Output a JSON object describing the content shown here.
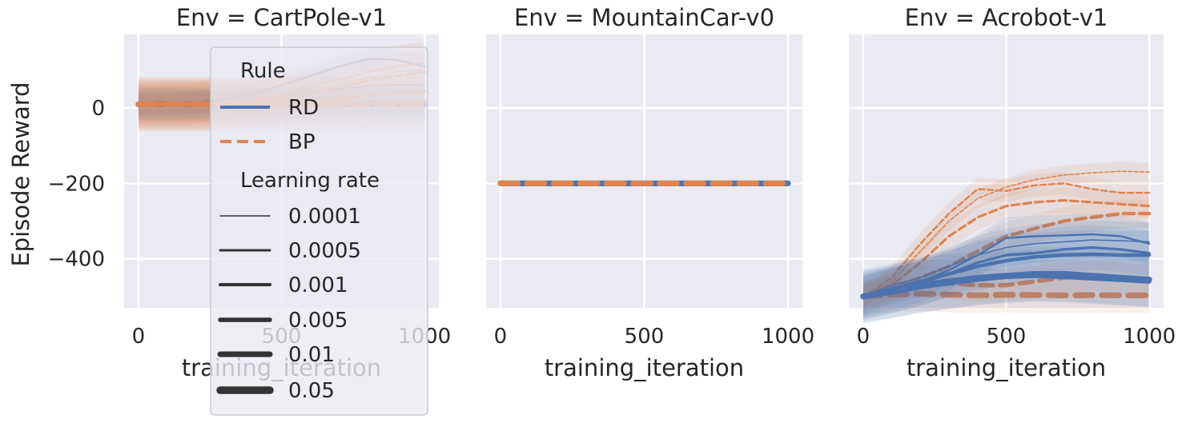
{
  "chart_data": {
    "type": "line",
    "ylabel": "Episode Reward",
    "ylim": [
      -530,
      195
    ],
    "yticks": [
      "0",
      "−200",
      "−400"
    ],
    "ytick_values": [
      0,
      -200,
      -400
    ],
    "background": "#eaeaf2",
    "grid": true,
    "colors": {
      "RD": "#4c72b0",
      "BP": "#dd8452",
      "legend_line": "#333333"
    },
    "legend": {
      "placement": "over-left-panel",
      "title_rule": "Rule",
      "rules": [
        "RD",
        "BP"
      ],
      "title_lr": "Learning rate",
      "learning_rates": [
        "0.0001",
        "0.0005",
        "0.001",
        "0.005",
        "0.01",
        "0.05"
      ]
    },
    "panels": [
      {
        "title": "Env = CartPole-v1",
        "xlabel": "training_iteration",
        "xlim": [
          -50,
          1050
        ],
        "xticks": [
          "0",
          "500",
          "1000"
        ],
        "xtick_values": [
          0,
          500,
          1000
        ],
        "series": [
          {
            "rule": "RD",
            "lr": "0.0001",
            "x": [
              0,
              100,
              200,
              300,
              400,
              500,
              600,
              700,
              800,
              900,
              1000
            ],
            "y": [
              10,
              10,
              12,
              16,
              22,
              30,
              40,
              50,
              58,
              62,
              60
            ]
          },
          {
            "rule": "RD",
            "lr": "0.0005",
            "x": [
              0,
              100,
              200,
              300,
              400,
              500,
              600,
              700,
              800,
              900,
              1000
            ],
            "y": [
              10,
              10,
              14,
              22,
              38,
              60,
              85,
              110,
              130,
              128,
              110
            ]
          },
          {
            "rule": "RD",
            "lr": "0.001",
            "x": [
              0,
              100,
              200,
              300,
              400,
              500,
              600,
              700,
              800,
              900,
              1000
            ],
            "y": [
              10,
              10,
              11,
              12,
              13,
              14,
              15,
              15,
              16,
              16,
              16
            ]
          },
          {
            "rule": "RD",
            "lr": "0.005",
            "x": [
              0,
              100,
              200,
              300,
              400,
              500,
              600,
              700,
              800,
              900,
              1000
            ],
            "y": [
              10,
              10,
              10,
              11,
              11,
              12,
              12,
              13,
              14,
              14,
              14
            ]
          },
          {
            "rule": "RD",
            "lr": "0.01",
            "x": [
              0,
              100,
              200,
              300,
              400,
              500,
              600,
              700,
              800,
              900,
              1000
            ],
            "y": [
              10,
              10,
              10,
              10,
              10,
              11,
              11,
              11,
              11,
              11,
              11
            ]
          },
          {
            "rule": "RD",
            "lr": "0.05",
            "x": [
              0,
              100,
              200,
              300,
              400,
              500,
              600,
              700,
              800,
              900,
              1000
            ],
            "y": [
              10,
              10,
              10,
              10,
              10,
              10,
              10,
              10,
              10,
              10,
              10
            ]
          },
          {
            "rule": "BP",
            "lr": "0.0001",
            "x": [
              0,
              100,
              200,
              300,
              400,
              500,
              600,
              700,
              800,
              900,
              1000
            ],
            "y": [
              10,
              10,
              11,
              14,
              20,
              30,
              45,
              62,
              80,
              95,
              100
            ]
          },
          {
            "rule": "BP",
            "lr": "0.0005",
            "x": [
              0,
              100,
              200,
              300,
              400,
              500,
              600,
              700,
              800,
              900,
              1000
            ],
            "y": [
              10,
              10,
              12,
              16,
              25,
              38,
              55,
              75,
              95,
              110,
              120
            ]
          },
          {
            "rule": "BP",
            "lr": "0.001",
            "x": [
              0,
              100,
              200,
              300,
              400,
              500,
              600,
              700,
              800,
              900,
              1000
            ],
            "y": [
              10,
              10,
              11,
              13,
              18,
              26,
              38,
              55,
              72,
              85,
              95
            ]
          },
          {
            "rule": "BP",
            "lr": "0.005",
            "x": [
              0,
              100,
              200,
              300,
              400,
              500,
              600,
              700,
              800,
              900,
              1000
            ],
            "y": [
              10,
              10,
              10,
              11,
              13,
              16,
              20,
              26,
              33,
              40,
              45
            ]
          },
          {
            "rule": "BP",
            "lr": "0.01",
            "x": [
              0,
              100,
              200,
              300,
              400,
              500,
              600,
              700,
              800,
              900,
              1000
            ],
            "y": [
              10,
              10,
              10,
              10,
              11,
              12,
              13,
              14,
              15,
              16,
              16
            ]
          },
          {
            "rule": "BP",
            "lr": "0.05",
            "x": [
              0,
              100,
              200,
              300,
              400,
              500,
              600,
              700,
              800,
              900,
              1000
            ],
            "y": [
              10,
              10,
              10,
              10,
              10,
              10,
              10,
              10,
              10,
              10,
              10
            ]
          }
        ]
      },
      {
        "title": "Env = MountainCar-v0",
        "xlabel": "training_iteration",
        "xlim": [
          -50,
          1050
        ],
        "xticks": [
          "0",
          "500",
          "1000"
        ],
        "xtick_values": [
          0,
          500,
          1000
        ],
        "series": [
          {
            "rule": "RD",
            "lr": "0.05",
            "x": [
              0,
              1000
            ],
            "y": [
              -200,
              -200
            ]
          },
          {
            "rule": "BP",
            "lr": "0.05",
            "x": [
              0,
              1000
            ],
            "y": [
              -200,
              -200
            ]
          }
        ]
      },
      {
        "title": "Env = Acrobot-v1",
        "xlabel": "training_iteration",
        "xlim": [
          -50,
          1050
        ],
        "xticks": [
          "0",
          "500",
          "1000"
        ],
        "xtick_values": [
          0,
          500,
          1000
        ],
        "series": [
          {
            "rule": "BP",
            "lr": "0.0001",
            "x": [
              0,
              100,
              200,
              300,
              400,
              500,
              600,
              700,
              800,
              900,
              1000
            ],
            "y": [
              -500,
              -460,
              -380,
              -300,
              -240,
              -210,
              -190,
              -178,
              -172,
              -168,
              -170
            ]
          },
          {
            "rule": "BP",
            "lr": "0.0005",
            "x": [
              0,
              100,
              200,
              300,
              400,
              500,
              600,
              700,
              800,
              900,
              1000
            ],
            "y": [
              -500,
              -450,
              -360,
              -280,
              -215,
              -220,
              -205,
              -200,
              -215,
              -225,
              -225
            ]
          },
          {
            "rule": "BP",
            "lr": "0.001",
            "x": [
              0,
              100,
              200,
              300,
              400,
              500,
              600,
              700,
              800,
              900,
              1000
            ],
            "y": [
              -500,
              -470,
              -410,
              -340,
              -290,
              -260,
              -250,
              -245,
              -250,
              -255,
              -260
            ]
          },
          {
            "rule": "BP",
            "lr": "0.005",
            "x": [
              0,
              100,
              200,
              300,
              400,
              500,
              600,
              700,
              800,
              900,
              1000
            ],
            "y": [
              -500,
              -480,
              -450,
              -420,
              -380,
              -340,
              -320,
              -300,
              -290,
              -280,
              -280
            ]
          },
          {
            "rule": "BP",
            "lr": "0.01",
            "x": [
              0,
              100,
              200,
              300,
              400,
              500,
              600,
              700,
              800,
              900,
              1000
            ],
            "y": [
              -500,
              -470,
              -460,
              -465,
              -470,
              -470,
              -460,
              -450,
              -445,
              -450,
              -460
            ]
          },
          {
            "rule": "BP",
            "lr": "0.05",
            "x": [
              0,
              100,
              200,
              300,
              400,
              500,
              600,
              700,
              800,
              900,
              1000
            ],
            "y": [
              -500,
              -495,
              -492,
              -495,
              -497,
              -495,
              -496,
              -497,
              -496,
              -497,
              -497
            ]
          },
          {
            "rule": "RD",
            "lr": "0.0001",
            "x": [
              0,
              100,
              200,
              300,
              400,
              500,
              600,
              700,
              800,
              900,
              1000
            ],
            "y": [
              -500,
              -470,
              -450,
              -420,
              -390,
              -370,
              -360,
              -355,
              -350,
              -352,
              -355
            ]
          },
          {
            "rule": "RD",
            "lr": "0.0005",
            "x": [
              0,
              100,
              200,
              300,
              400,
              500,
              600,
              700,
              800,
              900,
              1000
            ],
            "y": [
              -500,
              -480,
              -460,
              -430,
              -390,
              -345,
              -340,
              -338,
              -335,
              -340,
              -360
            ]
          },
          {
            "rule": "RD",
            "lr": "0.001",
            "x": [
              0,
              100,
              200,
              300,
              400,
              500,
              600,
              700,
              800,
              900,
              1000
            ],
            "y": [
              -500,
              -485,
              -465,
              -440,
              -410,
              -390,
              -385,
              -375,
              -370,
              -375,
              -385
            ]
          },
          {
            "rule": "RD",
            "lr": "0.005",
            "x": [
              0,
              100,
              200,
              300,
              400,
              500,
              600,
              700,
              800,
              900,
              1000
            ],
            "y": [
              -500,
              -480,
              -460,
              -440,
              -420,
              -405,
              -395,
              -390,
              -388,
              -390,
              -390
            ]
          },
          {
            "rule": "RD",
            "lr": "0.01",
            "x": [
              0,
              100,
              200,
              300,
              400,
              500,
              600,
              700,
              800,
              900,
              1000
            ],
            "y": [
              -500,
              -490,
              -475,
              -465,
              -455,
              -448,
              -445,
              -448,
              -452,
              -456,
              -460
            ]
          },
          {
            "rule": "RD",
            "lr": "0.05",
            "x": [
              0,
              100,
              200,
              300,
              400,
              500,
              600,
              700,
              800,
              900,
              1000
            ],
            "y": [
              -500,
              -485,
              -470,
              -460,
              -450,
              -445,
              -440,
              -440,
              -445,
              -450,
              -455
            ]
          }
        ]
      }
    ]
  }
}
